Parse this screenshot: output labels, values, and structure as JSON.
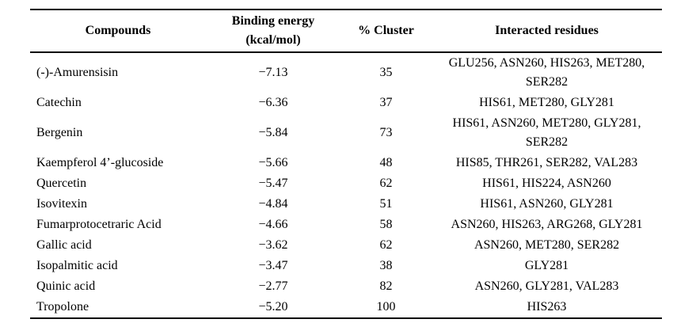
{
  "table": {
    "columns": [
      {
        "label": "Compounds"
      },
      {
        "label": "Binding energy",
        "label_line2": "(kcal/mol)"
      },
      {
        "label": "% Cluster"
      },
      {
        "label": "Interacted residues"
      }
    ],
    "rows": [
      {
        "compound": "(-)-Amurensisin",
        "binding_energy": "−7.13",
        "cluster": "35",
        "residues": "GLU256, ASN260, HIS263, MET280, SER282"
      },
      {
        "compound": "Catechin",
        "binding_energy": "−6.36",
        "cluster": "37",
        "residues": "HIS61, MET280, GLY281"
      },
      {
        "compound": "Bergenin",
        "binding_energy": "−5.84",
        "cluster": "73",
        "residues": "HIS61, ASN260, MET280, GLY281, SER282"
      },
      {
        "compound": "Kaempferol 4’-glucoside",
        "binding_energy": "−5.66",
        "cluster": "48",
        "residues": "HIS85, THR261, SER282, VAL283"
      },
      {
        "compound": "Quercetin",
        "binding_energy": "−5.47",
        "cluster": "62",
        "residues": "HIS61, HIS224, ASN260"
      },
      {
        "compound": "Isovitexin",
        "binding_energy": "−4.84",
        "cluster": "51",
        "residues": "HIS61, ASN260, GLY281"
      },
      {
        "compound": "Fumarprotocetraric Acid",
        "binding_energy": "−4.66",
        "cluster": "58",
        "residues": "ASN260, HIS263, ARG268, GLY281"
      },
      {
        "compound": "Gallic acid",
        "binding_energy": "−3.62",
        "cluster": "62",
        "residues": "ASN260, MET280, SER282"
      },
      {
        "compound": "Isopalmitic acid",
        "binding_energy": "−3.47",
        "cluster": "38",
        "residues": "GLY281"
      },
      {
        "compound": "Quinic acid",
        "binding_energy": "−2.77",
        "cluster": "82",
        "residues": "ASN260, GLY281, VAL283"
      },
      {
        "compound": "Tropolone",
        "binding_energy": "−5.20",
        "cluster": "100",
        "residues": "HIS263"
      }
    ]
  }
}
